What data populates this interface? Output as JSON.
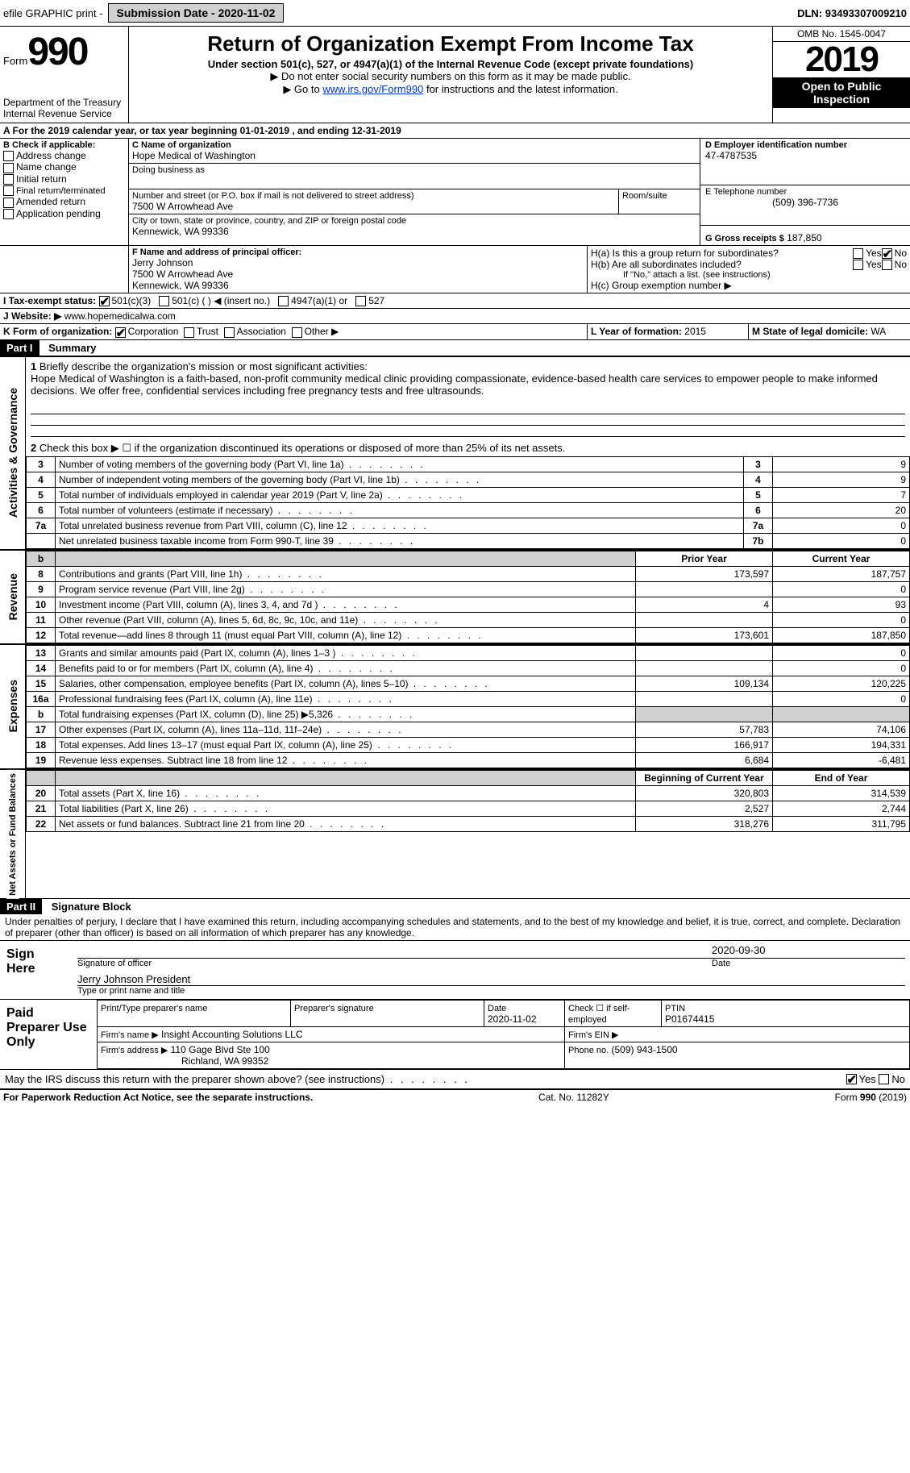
{
  "topbar": {
    "efile": "efile GRAPHIC print - ",
    "submission": "Submission Date - 2020-11-02",
    "dln_label": "DLN:",
    "dln": "93493307009210"
  },
  "header": {
    "form_word": "Form",
    "form_num": "990",
    "dept": "Department of the Treasury\nInternal Revenue Service",
    "title": "Return of Organization Exempt From Income Tax",
    "subtitle": "Under section 501(c), 527, or 4947(a)(1) of the Internal Revenue Code (except private foundations)",
    "hint1": "▶ Do not enter social security numbers on this form as it may be made public.",
    "hint2_pre": "▶ Go to ",
    "hint2_link": "www.irs.gov/Form990",
    "hint2_post": " for instructions and the latest information.",
    "omb": "OMB No. 1545-0047",
    "year": "2019",
    "open": "Open to Public Inspection"
  },
  "lineA": "A For the 2019 calendar year, or tax year beginning 01-01-2019   , and ending 12-31-2019",
  "boxB": {
    "label": "B Check if applicable:",
    "items": [
      "Address change",
      "Name change",
      "Initial return",
      "Final return/terminated",
      "Amended return",
      "Application pending"
    ]
  },
  "boxC": {
    "name_label": "C Name of organization",
    "name": "Hope Medical of Washington",
    "dba_label": "Doing business as",
    "addr_label": "Number and street (or P.O. box if mail is not delivered to street address)",
    "room_label": "Room/suite",
    "addr": "7500 W Arrowhead Ave",
    "city_label": "City or town, state or province, country, and ZIP or foreign postal code",
    "city": "Kennewick, WA  99336"
  },
  "boxD": {
    "label": "D Employer identification number",
    "value": "47-4787535"
  },
  "boxE": {
    "label": "E Telephone number",
    "value": "(509) 396-7736"
  },
  "boxG": {
    "label": "G Gross receipts $",
    "value": "187,850"
  },
  "boxF": {
    "label": "F  Name and address of principal officer:",
    "name": "Jerry Johnson",
    "addr1": "7500 W Arrowhead Ave",
    "addr2": "Kennewick, WA  99336"
  },
  "boxH": {
    "a_label": "H(a)  Is this a group return for subordinates?",
    "b_label": "H(b)  Are all subordinates included?",
    "note": "If \"No,\" attach a list. (see instructions)",
    "c_label": "H(c)  Group exemption number ▶",
    "yes": "Yes",
    "no": "No"
  },
  "boxI": {
    "label": "I     Tax-exempt status:",
    "opts": [
      "501(c)(3)",
      "501(c) (  ) ◀ (insert no.)",
      "4947(a)(1) or",
      "527"
    ]
  },
  "boxJ": {
    "label": "J    Website: ▶",
    "value": "www.hopemedicalwa.com"
  },
  "boxK": {
    "label": "K Form of organization:",
    "opts": [
      "Corporation",
      "Trust",
      "Association",
      "Other ▶"
    ]
  },
  "boxL": {
    "label": "L Year of formation:",
    "value": "2015"
  },
  "boxM": {
    "label": "M State of legal domicile:",
    "value": "WA"
  },
  "part1": {
    "num": "Part I",
    "title": "Summary"
  },
  "summary1": {
    "num": "1",
    "label": "Briefly describe the organization's mission or most significant activities:",
    "text": "Hope Medical of Washington is a faith-based, non-profit community medical clinic providing compassionate, evidence-based health care services to empower people to make informed decisions. We offer free, confidential services including free pregnancy tests and free ultrasounds."
  },
  "summary2": {
    "num": "2",
    "label": "Check this box ▶ ☐  if the organization discontinued its operations or disposed of more than 25% of its net assets."
  },
  "govRows": [
    {
      "num": "3",
      "label": "Number of voting members of the governing body (Part VI, line 1a)",
      "rn": "3",
      "val": "9"
    },
    {
      "num": "4",
      "label": "Number of independent voting members of the governing body (Part VI, line 1b)",
      "rn": "4",
      "val": "9"
    },
    {
      "num": "5",
      "label": "Total number of individuals employed in calendar year 2019 (Part V, line 2a)",
      "rn": "5",
      "val": "7"
    },
    {
      "num": "6",
      "label": "Total number of volunteers (estimate if necessary)",
      "rn": "6",
      "val": "20"
    },
    {
      "num": "7a",
      "label": "Total unrelated business revenue from Part VIII, column (C), line 12",
      "rn": "7a",
      "val": "0"
    },
    {
      "num": "",
      "label": "Net unrelated business taxable income from Form 990-T, line 39",
      "rn": "7b",
      "val": "0"
    }
  ],
  "revHeaders": {
    "prior": "Prior Year",
    "current": "Current Year"
  },
  "revRows": [
    {
      "num": "8",
      "label": "Contributions and grants (Part VIII, line 1h)",
      "p": "173,597",
      "c": "187,757"
    },
    {
      "num": "9",
      "label": "Program service revenue (Part VIII, line 2g)",
      "p": "",
      "c": "0"
    },
    {
      "num": "10",
      "label": "Investment income (Part VIII, column (A), lines 3, 4, and 7d )",
      "p": "4",
      "c": "93"
    },
    {
      "num": "11",
      "label": "Other revenue (Part VIII, column (A), lines 5, 6d, 8c, 9c, 10c, and 11e)",
      "p": "",
      "c": "0"
    },
    {
      "num": "12",
      "label": "Total revenue—add lines 8 through 11 (must equal Part VIII, column (A), line 12)",
      "p": "173,601",
      "c": "187,850"
    }
  ],
  "expRows": [
    {
      "num": "13",
      "label": "Grants and similar amounts paid (Part IX, column (A), lines 1–3 )",
      "p": "",
      "c": "0"
    },
    {
      "num": "14",
      "label": "Benefits paid to or for members (Part IX, column (A), line 4)",
      "p": "",
      "c": "0"
    },
    {
      "num": "15",
      "label": "Salaries, other compensation, employee benefits (Part IX, column (A), lines 5–10)",
      "p": "109,134",
      "c": "120,225"
    },
    {
      "num": "16a",
      "label": "Professional fundraising fees (Part IX, column (A), line 11e)",
      "p": "",
      "c": "0"
    },
    {
      "num": "b",
      "label": "Total fundraising expenses (Part IX, column (D), line 25) ▶5,326",
      "p": "shade",
      "c": "shade"
    },
    {
      "num": "17",
      "label": "Other expenses (Part IX, column (A), lines 11a–11d, 11f–24e)",
      "p": "57,783",
      "c": "74,106"
    },
    {
      "num": "18",
      "label": "Total expenses. Add lines 13–17 (must equal Part IX, column (A), line 25)",
      "p": "166,917",
      "c": "194,331"
    },
    {
      "num": "19",
      "label": "Revenue less expenses. Subtract line 18 from line 12",
      "p": "6,684",
      "c": "-6,481"
    }
  ],
  "balHeaders": {
    "begin": "Beginning of Current Year",
    "end": "End of Year"
  },
  "balRows": [
    {
      "num": "20",
      "label": "Total assets (Part X, line 16)",
      "p": "320,803",
      "c": "314,539"
    },
    {
      "num": "21",
      "label": "Total liabilities (Part X, line 26)",
      "p": "2,527",
      "c": "2,744"
    },
    {
      "num": "22",
      "label": "Net assets or fund balances. Subtract line 21 from line 20",
      "p": "318,276",
      "c": "311,795"
    }
  ],
  "vlabels": {
    "gov": "Activities & Governance",
    "rev": "Revenue",
    "exp": "Expenses",
    "bal": "Net Assets or Fund Balances"
  },
  "part2": {
    "num": "Part II",
    "title": "Signature Block"
  },
  "sigIntro": "Under penalties of perjury, I declare that I have examined this return, including accompanying schedules and statements, and to the best of my knowledge and belief, it is true, correct, and complete. Declaration of preparer (other than officer) is based on all information of which preparer has any knowledge.",
  "sign": {
    "here": "Sign Here",
    "sig_label": "Signature of officer",
    "date_label": "Date",
    "date": "2020-09-30",
    "name": "Jerry Johnson  President",
    "name_label": "Type or print name and title"
  },
  "paid": {
    "title": "Paid Preparer Use Only",
    "h1": "Print/Type preparer's name",
    "h2": "Preparer's signature",
    "h3": "Date",
    "h3v": "2020-11-02",
    "h4": "Check ☐ if self-employed",
    "h5": "PTIN",
    "h5v": "P01674415",
    "firm_label": "Firm's name    ▶",
    "firm": "Insight Accounting Solutions LLC",
    "ein_label": "Firm's EIN ▶",
    "addr_label": "Firm's address ▶",
    "addr1": "110 Gage Blvd Ste 100",
    "addr2": "Richland, WA  99352",
    "phone_label": "Phone no.",
    "phone": "(509) 943-1500"
  },
  "discuss": {
    "label": "May the IRS discuss this return with the preparer shown above? (see instructions)",
    "yes": "Yes",
    "no": "No"
  },
  "footer": {
    "left": "For Paperwork Reduction Act Notice, see the separate instructions.",
    "mid": "Cat. No. 11282Y",
    "right": "Form 990 (2019)"
  }
}
